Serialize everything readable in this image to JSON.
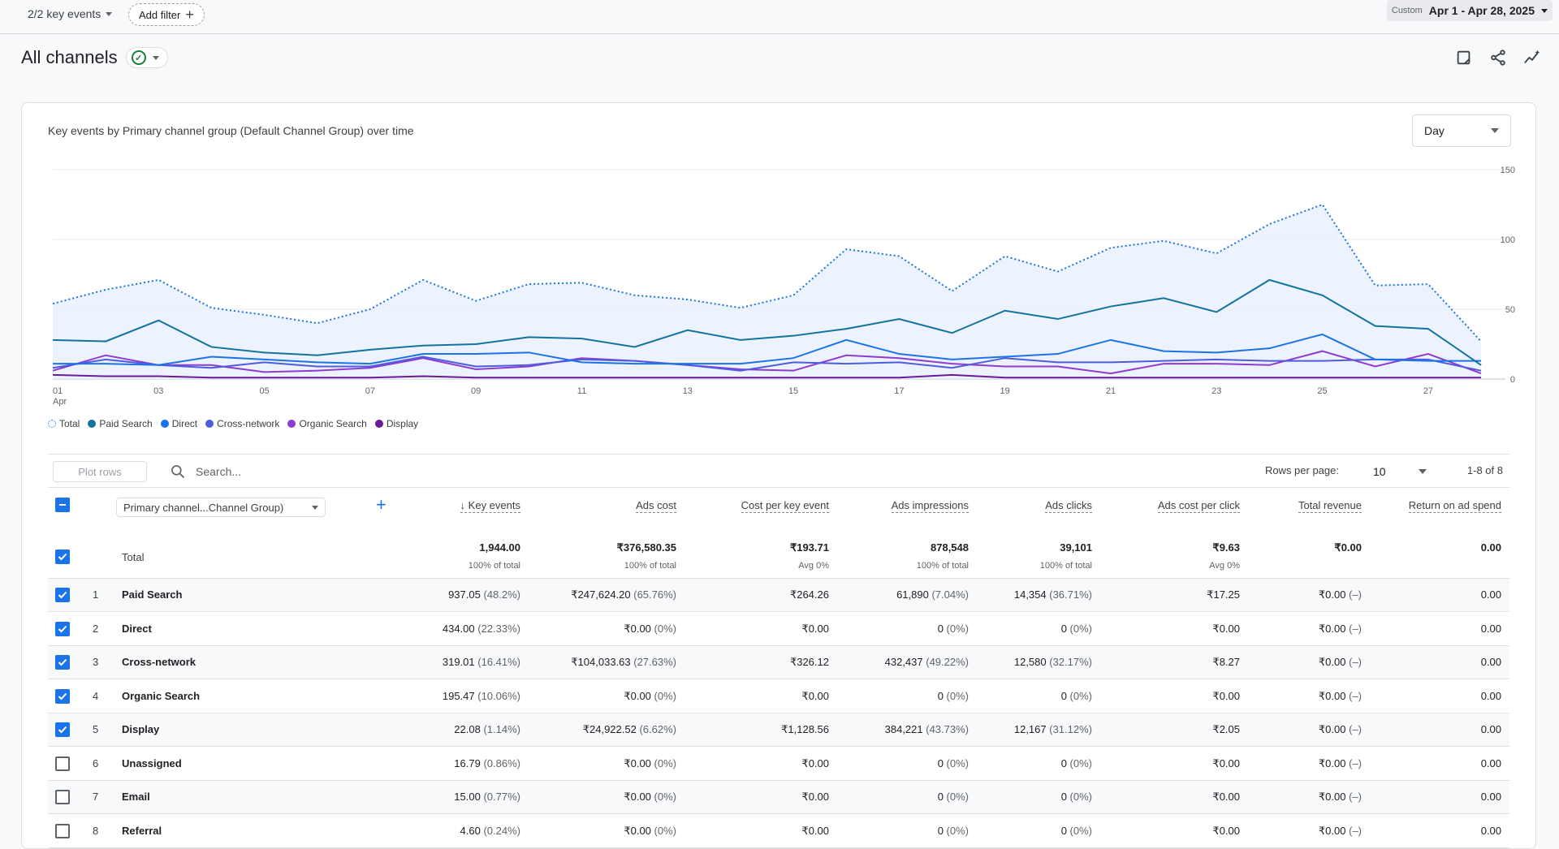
{
  "topbar": {
    "key_events_label": "2/2 key events",
    "add_filter_label": "Add filter",
    "date_custom_label": "Custom",
    "date_range": "Apr 1 - Apr 28, 2025"
  },
  "header": {
    "title": "All channels"
  },
  "chart": {
    "title": "Key events by Primary channel group (Default Channel Group) over time",
    "granularity": "Day"
  },
  "chart_data": {
    "type": "line",
    "title": "Key events by Primary channel group (Default Channel Group) over time",
    "x": [
      1,
      2,
      3,
      4,
      5,
      6,
      7,
      8,
      9,
      10,
      11,
      12,
      13,
      14,
      15,
      16,
      17,
      18,
      19,
      20,
      21,
      22,
      23,
      24,
      25,
      26,
      27,
      28
    ],
    "x_tick_labels": [
      "01",
      "03",
      "05",
      "07",
      "09",
      "11",
      "13",
      "15",
      "17",
      "19",
      "21",
      "23",
      "25",
      "27"
    ],
    "x_tick_sub": "Apr",
    "ylim": [
      0,
      150
    ],
    "y_ticks": [
      "150",
      "100",
      "50",
      "0"
    ],
    "series": [
      {
        "name": "Total",
        "color": "#1a73e8",
        "style": "dotted",
        "values": [
          54,
          64,
          71,
          51,
          46,
          40,
          50,
          71,
          56,
          68,
          69,
          60,
          57,
          51,
          60,
          93,
          88,
          63,
          88,
          77,
          94,
          99,
          90,
          111,
          125,
          67,
          68,
          27
        ]
      },
      {
        "name": "Paid Search",
        "color": "#12739d",
        "style": "solid",
        "values": [
          28,
          27,
          42,
          23,
          19,
          17,
          21,
          24,
          25,
          30,
          29,
          23,
          35,
          28,
          31,
          36,
          43,
          33,
          49,
          43,
          52,
          58,
          48,
          71,
          60,
          38,
          36,
          10
        ]
      },
      {
        "name": "Direct",
        "color": "#1a73e8",
        "style": "solid",
        "values": [
          11,
          11,
          10,
          16,
          14,
          12,
          11,
          18,
          18,
          19,
          12,
          11,
          11,
          11,
          15,
          28,
          18,
          14,
          16,
          18,
          28,
          20,
          19,
          22,
          32,
          14,
          13,
          13
        ]
      },
      {
        "name": "Cross-network",
        "color": "#4e5de0",
        "style": "solid",
        "values": [
          8,
          14,
          10,
          8,
          12,
          9,
          9,
          16,
          9,
          10,
          14,
          13,
          10,
          6,
          12,
          11,
          12,
          8,
          15,
          12,
          12,
          13,
          14,
          13,
          13,
          14,
          14,
          6
        ]
      },
      {
        "name": "Organic Search",
        "color": "#8e3bd1",
        "style": "solid",
        "values": [
          6,
          17,
          10,
          10,
          5,
          6,
          8,
          15,
          7,
          9,
          15,
          13,
          10,
          7,
          6,
          17,
          15,
          11,
          9,
          9,
          4,
          11,
          11,
          10,
          20,
          9,
          18,
          4
        ]
      },
      {
        "name": "Display",
        "color": "#6a1b9a",
        "style": "solid",
        "values": [
          3,
          2,
          2,
          1,
          1,
          1,
          1,
          2,
          1,
          1,
          1,
          1,
          1,
          1,
          1,
          1,
          1,
          3,
          1,
          1,
          1,
          1,
          1,
          1,
          1,
          1,
          1,
          1
        ]
      }
    ]
  },
  "legend": [
    {
      "label": "Total",
      "color": "#1a73e8"
    },
    {
      "label": "Paid Search",
      "color": "#12739d"
    },
    {
      "label": "Direct",
      "color": "#1a73e8"
    },
    {
      "label": "Cross-network",
      "color": "#4e5de0"
    },
    {
      "label": "Organic Search",
      "color": "#8e3bd1"
    },
    {
      "label": "Display",
      "color": "#6a1b9a"
    }
  ],
  "toolbar": {
    "plot_rows": "Plot rows",
    "search_placeholder": "Search...",
    "rows_per_page_label": "Rows per page:",
    "rows_per_page": "10",
    "pager": "1-8 of 8"
  },
  "table": {
    "dimension_label": "Primary channel...Channel Group)",
    "total_label": "Total",
    "columns": [
      {
        "label": "Key events",
        "sorted": true,
        "total": "1,944.00",
        "sub": "100% of total"
      },
      {
        "label": "Ads cost",
        "total": "₹376,580.35",
        "sub": "100% of total"
      },
      {
        "label": "Cost per key event",
        "total": "₹193.71",
        "sub": "Avg 0%"
      },
      {
        "label": "Ads impressions",
        "total": "878,548",
        "sub": "100% of total"
      },
      {
        "label": "Ads clicks",
        "total": "39,101",
        "sub": "100% of total"
      },
      {
        "label": "Ads cost per click",
        "total": "₹9.63",
        "sub": "Avg 0%"
      },
      {
        "label": "Total revenue",
        "total": "₹0.00",
        "sub": ""
      },
      {
        "label": "Return on ad spend",
        "total": "0.00",
        "sub": ""
      }
    ],
    "rows": [
      {
        "index": "1",
        "name": "Paid Search",
        "checked": true,
        "cells": [
          [
            "937.05",
            "(48.2%)"
          ],
          [
            "₹247,624.20",
            "(65.76%)"
          ],
          [
            "₹264.26",
            ""
          ],
          [
            "61,890",
            "(7.04%)"
          ],
          [
            "14,354",
            "(36.71%)"
          ],
          [
            "₹17.25",
            ""
          ],
          [
            "₹0.00",
            "(–)"
          ],
          [
            "0.00",
            ""
          ]
        ]
      },
      {
        "index": "2",
        "name": "Direct",
        "checked": true,
        "cells": [
          [
            "434.00",
            "(22.33%)"
          ],
          [
            "₹0.00",
            "(0%)"
          ],
          [
            "₹0.00",
            ""
          ],
          [
            "0",
            "(0%)"
          ],
          [
            "0",
            "(0%)"
          ],
          [
            "₹0.00",
            ""
          ],
          [
            "₹0.00",
            "(–)"
          ],
          [
            "0.00",
            ""
          ]
        ]
      },
      {
        "index": "3",
        "name": "Cross-network",
        "checked": true,
        "cells": [
          [
            "319.01",
            "(16.41%)"
          ],
          [
            "₹104,033.63",
            "(27.63%)"
          ],
          [
            "₹326.12",
            ""
          ],
          [
            "432,437",
            "(49.22%)"
          ],
          [
            "12,580",
            "(32.17%)"
          ],
          [
            "₹8.27",
            ""
          ],
          [
            "₹0.00",
            "(–)"
          ],
          [
            "0.00",
            ""
          ]
        ]
      },
      {
        "index": "4",
        "name": "Organic Search",
        "checked": true,
        "cells": [
          [
            "195.47",
            "(10.06%)"
          ],
          [
            "₹0.00",
            "(0%)"
          ],
          [
            "₹0.00",
            ""
          ],
          [
            "0",
            "(0%)"
          ],
          [
            "0",
            "(0%)"
          ],
          [
            "₹0.00",
            ""
          ],
          [
            "₹0.00",
            "(–)"
          ],
          [
            "0.00",
            ""
          ]
        ]
      },
      {
        "index": "5",
        "name": "Display",
        "checked": true,
        "cells": [
          [
            "22.08",
            "(1.14%)"
          ],
          [
            "₹24,922.52",
            "(6.62%)"
          ],
          [
            "₹1,128.56",
            ""
          ],
          [
            "384,221",
            "(43.73%)"
          ],
          [
            "12,167",
            "(31.12%)"
          ],
          [
            "₹2.05",
            ""
          ],
          [
            "₹0.00",
            "(–)"
          ],
          [
            "0.00",
            ""
          ]
        ]
      },
      {
        "index": "6",
        "name": "Unassigned",
        "checked": false,
        "cells": [
          [
            "16.79",
            "(0.86%)"
          ],
          [
            "₹0.00",
            "(0%)"
          ],
          [
            "₹0.00",
            ""
          ],
          [
            "0",
            "(0%)"
          ],
          [
            "0",
            "(0%)"
          ],
          [
            "₹0.00",
            ""
          ],
          [
            "₹0.00",
            "(–)"
          ],
          [
            "0.00",
            ""
          ]
        ]
      },
      {
        "index": "7",
        "name": "Email",
        "checked": false,
        "cells": [
          [
            "15.00",
            "(0.77%)"
          ],
          [
            "₹0.00",
            "(0%)"
          ],
          [
            "₹0.00",
            ""
          ],
          [
            "0",
            "(0%)"
          ],
          [
            "0",
            "(0%)"
          ],
          [
            "₹0.00",
            ""
          ],
          [
            "₹0.00",
            "(–)"
          ],
          [
            "0.00",
            ""
          ]
        ]
      },
      {
        "index": "8",
        "name": "Referral",
        "checked": false,
        "cells": [
          [
            "4.60",
            "(0.24%)"
          ],
          [
            "₹0.00",
            "(0%)"
          ],
          [
            "₹0.00",
            ""
          ],
          [
            "0",
            "(0%)"
          ],
          [
            "0",
            "(0%)"
          ],
          [
            "₹0.00",
            ""
          ],
          [
            "₹0.00",
            "(–)"
          ],
          [
            "0.00",
            ""
          ]
        ]
      }
    ]
  }
}
